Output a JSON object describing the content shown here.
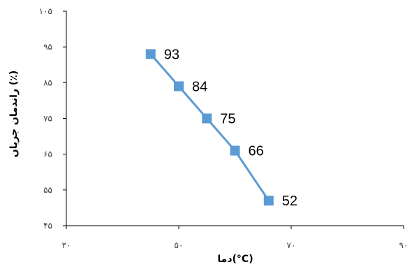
{
  "chart_data": {
    "type": "line",
    "x": [
      45,
      50,
      55,
      60,
      66
    ],
    "y": [
      93,
      84,
      75,
      66,
      52
    ],
    "data_labels": [
      "93",
      "84",
      "75",
      "66",
      "52"
    ],
    "xlabel": "دما(°C)",
    "ylabel": "راندمان جریان (٪)",
    "xlim": [
      30,
      90
    ],
    "ylim": [
      45,
      105
    ],
    "x_ticks": [
      30,
      50,
      70,
      90
    ],
    "x_tick_labels": [
      "۳۰",
      "۵۰",
      "۷۰",
      "۹۰"
    ],
    "y_ticks": [
      45,
      55,
      65,
      75,
      85,
      95,
      105
    ],
    "y_tick_labels": [
      "۴۵",
      "۵۵",
      "۶۵",
      "۷۵",
      "۸۵",
      "۹۵",
      "۱۰۵"
    ],
    "grid": false,
    "legend": "none",
    "marker": "square",
    "color": "#5b9bd5"
  }
}
